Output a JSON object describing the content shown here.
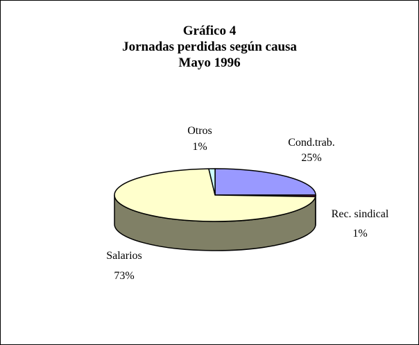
{
  "chart_data": {
    "type": "pie",
    "title": [
      "Gráfico 4",
      "Jornadas perdidas según causa",
      "Mayo 1996"
    ],
    "slices": [
      {
        "label": "Cond.trab.",
        "percent_label": "25%",
        "value": 25,
        "color": "#9999ff",
        "side_color": "#4d4d80"
      },
      {
        "label": "Rec. sindical",
        "percent_label": "1%",
        "value": 1,
        "color": "#993366",
        "side_color": "#4d1a33"
      },
      {
        "label": "Salarios",
        "percent_label": "73%",
        "value": 73,
        "color": "#ffffcc",
        "side_color": "#808066"
      },
      {
        "label": "Otros",
        "percent_label": "1%",
        "value": 1,
        "color": "#ccffff",
        "side_color": "#668080"
      }
    ]
  }
}
